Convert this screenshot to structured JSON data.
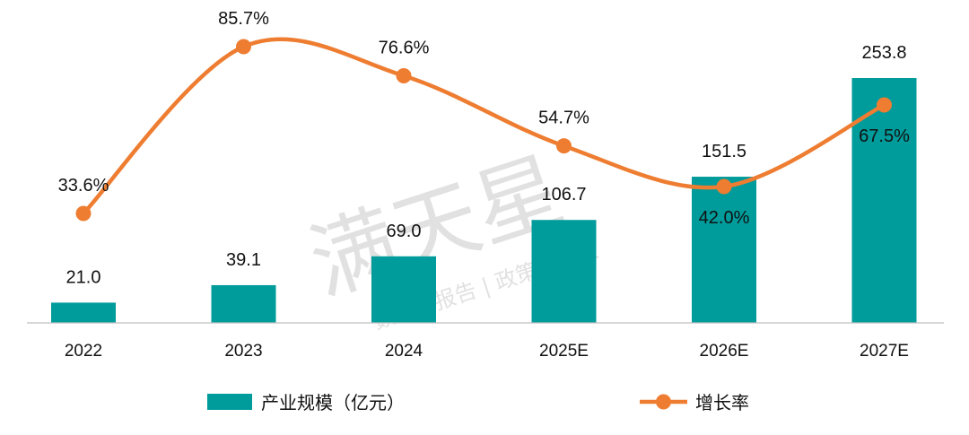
{
  "chart_data": {
    "type": "bar+line",
    "categories": [
      "2022",
      "2023",
      "2024",
      "2025E",
      "2026E",
      "2027E"
    ],
    "series": [
      {
        "name": "产业规模（亿元）",
        "type": "bar",
        "axis": "left",
        "values": [
          21.0,
          39.1,
          69.0,
          106.7,
          151.5,
          253.8
        ],
        "labels": [
          "21.0",
          "39.1",
          "69.0",
          "106.7",
          "151.5",
          "253.8"
        ]
      },
      {
        "name": "增长率",
        "type": "line",
        "axis": "right",
        "values": [
          33.6,
          85.7,
          76.6,
          54.7,
          42.0,
          67.5
        ],
        "labels": [
          "33.6%",
          "85.7%",
          "76.6%",
          "54.7%",
          "42.0%",
          "67.5%"
        ]
      }
    ],
    "bar_ylim": [
      0,
      300
    ],
    "line_ylim": [
      -30,
      100
    ],
    "grid": false,
    "legend_position": "bottom",
    "watermark": "满天星 数据 | 报告 | 政策 | 专家"
  },
  "colors": {
    "bar": "#009b9b",
    "line": "#ee7d31",
    "axis": "#bfbfbf",
    "text": "#111111"
  }
}
